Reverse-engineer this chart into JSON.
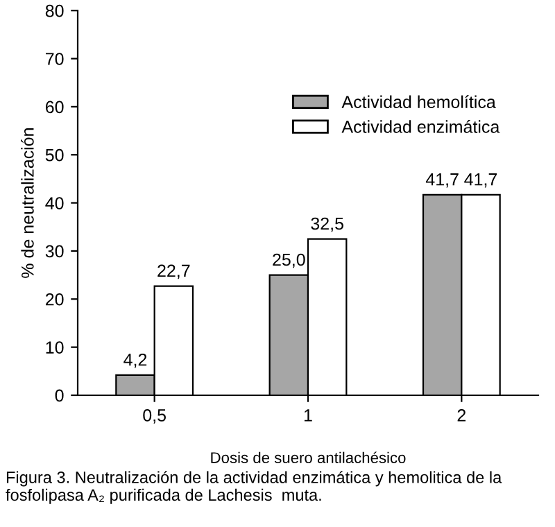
{
  "chart_data": {
    "type": "bar",
    "xlabel": "Dosis de suero antilachésico",
    "ylabel": "% de neutralización",
    "categories": [
      "0,5",
      "1",
      "2"
    ],
    "series": [
      {
        "name": "Actividad hemolítica",
        "color": "#a6a6a6",
        "values": [
          4.2,
          25.0,
          41.7
        ],
        "value_labels": [
          "4,2",
          "25,0",
          "41,7"
        ]
      },
      {
        "name": "Actividad enzimática",
        "color": "#ffffff",
        "values": [
          22.7,
          32.5,
          41.7
        ],
        "value_labels": [
          "22,7",
          "32,5",
          "41,7"
        ]
      }
    ],
    "ylim": [
      0,
      80
    ],
    "yticks": [
      0,
      10,
      20,
      30,
      40,
      50,
      60,
      70,
      80
    ],
    "grid": false,
    "legend": "top right",
    "annotations": [
      "Figura 3. Neutralización de la actividad enzimática y hemolitica de la fosfolipasa A₂ purificada de Lachesis  muta."
    ]
  }
}
